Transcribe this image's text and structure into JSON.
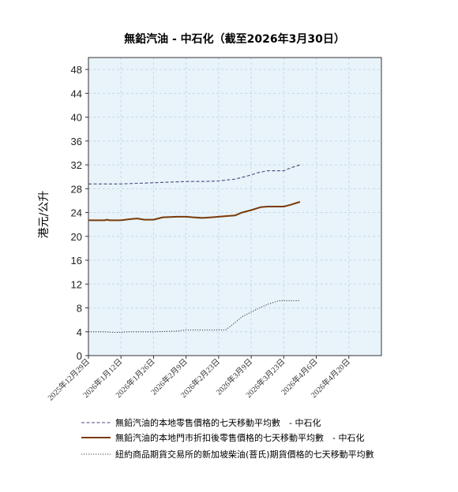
{
  "chart_data": {
    "type": "line",
    "title": "無鉛汽油 - 中石化（截至2026年3月30日）",
    "ylabel": "港元/公升",
    "xlabel": "",
    "ylim": [
      0,
      50
    ],
    "yticks": [
      0,
      4,
      8,
      12,
      16,
      20,
      24,
      28,
      32,
      36,
      40,
      44,
      48
    ],
    "x_range": [
      "2025-12-29",
      "2026-05-04"
    ],
    "x_tick_labels": [
      "2025年12月29日",
      "2026年1月12日",
      "2026年1月26日",
      "2026年2月9日",
      "2026年2月23日",
      "2026年3月9日",
      "2026年3月23日",
      "2026年4月6日",
      "2026年4月20日"
    ],
    "x_tick_dates": [
      "2025-12-29",
      "2026-01-12",
      "2026-01-26",
      "2026-02-09",
      "2026-02-23",
      "2026-03-09",
      "2026-03-23",
      "2026-04-06",
      "2026-04-20"
    ],
    "grid": true,
    "legend_position": "bottom",
    "plot_background": "#e8f3fa",
    "series": [
      {
        "name": "無鉛汽油的本地零售價格的七天移動平均數　- 中石化",
        "style": "dashed",
        "color": "#4a4a7a",
        "points": [
          [
            "2025-12-29",
            28.8
          ],
          [
            "2026-01-05",
            28.8
          ],
          [
            "2026-01-12",
            28.8
          ],
          [
            "2026-01-19",
            28.9
          ],
          [
            "2026-01-26",
            29.0
          ],
          [
            "2026-02-02",
            29.1
          ],
          [
            "2026-02-09",
            29.2
          ],
          [
            "2026-02-16",
            29.2
          ],
          [
            "2026-02-23",
            29.3
          ],
          [
            "2026-03-02",
            29.6
          ],
          [
            "2026-03-05",
            29.9
          ],
          [
            "2026-03-09",
            30.3
          ],
          [
            "2026-03-12",
            30.7
          ],
          [
            "2026-03-16",
            31.0
          ],
          [
            "2026-03-23",
            31.0
          ],
          [
            "2026-03-26",
            31.5
          ],
          [
            "2026-03-30",
            32.0
          ]
        ]
      },
      {
        "name": "無鉛汽油的本地門市折扣後零售價格的七天移動平均數　- 中石化",
        "style": "solid",
        "color": "#7a3a08",
        "points": [
          [
            "2025-12-29",
            22.7
          ],
          [
            "2026-01-05",
            22.7
          ],
          [
            "2026-01-06",
            22.8
          ],
          [
            "2026-01-07",
            22.7
          ],
          [
            "2026-01-12",
            22.7
          ],
          [
            "2026-01-16",
            22.9
          ],
          [
            "2026-01-19",
            23.0
          ],
          [
            "2026-01-22",
            22.8
          ],
          [
            "2026-01-26",
            22.8
          ],
          [
            "2026-01-30",
            23.2
          ],
          [
            "2026-02-05",
            23.3
          ],
          [
            "2026-02-09",
            23.3
          ],
          [
            "2026-02-12",
            23.2
          ],
          [
            "2026-02-16",
            23.1
          ],
          [
            "2026-02-20",
            23.2
          ],
          [
            "2026-02-23",
            23.3
          ],
          [
            "2026-02-26",
            23.4
          ],
          [
            "2026-03-02",
            23.5
          ],
          [
            "2026-03-05",
            24.0
          ],
          [
            "2026-03-09",
            24.4
          ],
          [
            "2026-03-13",
            24.9
          ],
          [
            "2026-03-16",
            25.0
          ],
          [
            "2026-03-23",
            25.0
          ],
          [
            "2026-03-26",
            25.3
          ],
          [
            "2026-03-30",
            25.8
          ]
        ]
      },
      {
        "name": "紐約商品期貨交易所的新加坡柴油(菩氏)期貨價格的七天移動平均數",
        "style": "dotted",
        "color": "#444444",
        "points": [
          [
            "2025-12-29",
            4.0
          ],
          [
            "2026-01-05",
            4.0
          ],
          [
            "2026-01-08",
            3.9
          ],
          [
            "2026-01-12",
            3.9
          ],
          [
            "2026-01-15",
            4.0
          ],
          [
            "2026-01-26",
            4.0
          ],
          [
            "2026-02-05",
            4.1
          ],
          [
            "2026-02-09",
            4.3
          ],
          [
            "2026-02-23",
            4.3
          ],
          [
            "2026-02-26",
            4.3
          ],
          [
            "2026-03-01",
            5.2
          ],
          [
            "2026-03-05",
            6.5
          ],
          [
            "2026-03-09",
            7.3
          ],
          [
            "2026-03-12",
            7.9
          ],
          [
            "2026-03-16",
            8.6
          ],
          [
            "2026-03-21",
            9.2
          ],
          [
            "2026-03-23",
            9.2
          ],
          [
            "2026-03-30",
            9.2
          ]
        ]
      }
    ]
  }
}
